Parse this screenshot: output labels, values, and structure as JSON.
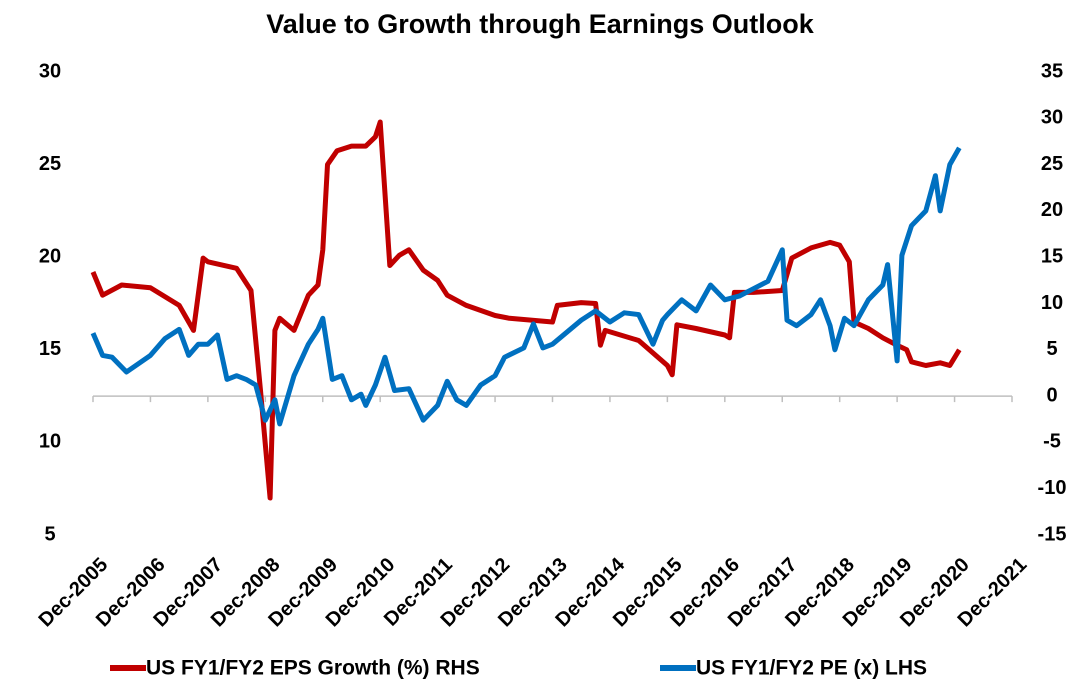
{
  "chart_data": {
    "type": "line",
    "title": "Value to Growth through Earnings Outlook",
    "xlim": [
      "Dec-2005",
      "Dec-2021"
    ],
    "xticks": [
      "Dec-2005",
      "Dec-2006",
      "Dec-2007",
      "Dec-2008",
      "Dec-2009",
      "Dec-2010",
      "Dec-2011",
      "Dec-2012",
      "Dec-2013",
      "Dec-2014",
      "Dec-2015",
      "Dec-2016",
      "Dec-2017",
      "Dec-2018",
      "Dec-2019",
      "Dec-2020",
      "Dec-2021"
    ],
    "ylim": [
      5,
      30
    ],
    "yticks": [
      5,
      10,
      15,
      20,
      25,
      30
    ],
    "y2lim": [
      -15,
      35
    ],
    "y2ticks": [
      -15,
      -10,
      -5,
      0,
      5,
      10,
      15,
      20,
      25,
      30,
      35
    ],
    "legend": "bottom",
    "series": [
      {
        "name": "US FY1/FY2 EPS Growth (%) RHS",
        "color": "#c00000",
        "axis": "y2",
        "x": [
          "Dec-2005",
          "Feb-2006",
          "Jun-2006",
          "Dec-2006",
          "Jun-2007",
          "Sep-2007",
          "Nov-2007",
          "Dec-2007",
          "Jun-2008",
          "Sep-2008",
          "Nov-2008",
          "Jan-2009",
          "Feb-2009",
          "Mar-2009",
          "Jun-2009",
          "Sep-2009",
          "Nov-2009",
          "Dec-2009",
          "Jan-2010",
          "Mar-2010",
          "Jun-2010",
          "Sep-2010",
          "Nov-2010",
          "Dec-2010",
          "Feb-2011",
          "Apr-2011",
          "Jun-2011",
          "Sep-2011",
          "Dec-2011",
          "Feb-2012",
          "Jun-2012",
          "Dec-2012",
          "Mar-2013",
          "Dec-2013",
          "Jan-2014",
          "Jun-2014",
          "Sep-2014",
          "Oct-2014",
          "Nov-2014",
          "Jun-2015",
          "Dec-2015",
          "Jan-2016",
          "Feb-2016",
          "Jun-2016",
          "Dec-2016",
          "Jan-2017",
          "Feb-2017",
          "Jun-2017",
          "Dec-2017",
          "Feb-2018",
          "Jun-2018",
          "Oct-2018",
          "Dec-2018",
          "Feb-2019",
          "Mar-2019",
          "Jun-2019",
          "Sep-2019",
          "Dec-2019",
          "Feb-2020",
          "Mar-2020",
          "Jun-2020",
          "Sep-2020",
          "Nov-2020",
          "Jan-2021"
        ],
        "values": [
          13.4,
          10.9,
          12,
          11.7,
          9.8,
          7.1,
          14.9,
          14.5,
          13.8,
          11.4,
          0.6,
          -11,
          7.1,
          8.4,
          7.1,
          10.9,
          12,
          15.8,
          25,
          26.5,
          27,
          27,
          28,
          29.6,
          14.1,
          15.2,
          15.8,
          13.6,
          12.5,
          10.9,
          9.8,
          8.7,
          8.4,
          8,
          9.8,
          10.1,
          10,
          5.5,
          7.1,
          6,
          3.3,
          2.3,
          7.7,
          7.3,
          6.6,
          6.3,
          11.2,
          11.2,
          11.4,
          14.9,
          16,
          16.6,
          16.3,
          14.5,
          8,
          7.3,
          6.3,
          5.5,
          5,
          3.7,
          3.3,
          3.6,
          3.3,
          5
        ]
      },
      {
        "name": "US FY1/FY2 PE (x) LHS",
        "color": "#0070c0",
        "axis": "y",
        "x": [
          "Dec-2005",
          "Feb-2006",
          "Apr-2006",
          "Jul-2006",
          "Dec-2006",
          "Mar-2007",
          "Jun-2007",
          "Aug-2007",
          "Oct-2007",
          "Dec-2007",
          "Feb-2008",
          "Apr-2008",
          "Jun-2008",
          "Aug-2008",
          "Oct-2008",
          "Dec-2008",
          "Feb-2009",
          "Mar-2009",
          "Jun-2009",
          "Sep-2009",
          "Nov-2009",
          "Dec-2009",
          "Feb-2010",
          "Apr-2010",
          "Jun-2010",
          "Aug-2010",
          "Sep-2010",
          "Nov-2010",
          "Jan-2011",
          "Mar-2011",
          "Jun-2011",
          "Sep-2011",
          "Dec-2011",
          "Feb-2012",
          "Apr-2012",
          "Jun-2012",
          "Sep-2012",
          "Dec-2012",
          "Feb-2013",
          "Jun-2013",
          "Aug-2013",
          "Oct-2013",
          "Dec-2013",
          "Jun-2014",
          "Sep-2014",
          "Dec-2014",
          "Mar-2015",
          "Jun-2015",
          "Sep-2015",
          "Nov-2015",
          "Dec-2015",
          "Mar-2016",
          "Jun-2016",
          "Sep-2016",
          "Dec-2016",
          "Mar-2017",
          "Jun-2017",
          "Sep-2017",
          "Dec-2017",
          "Jan-2018",
          "Mar-2018",
          "Jun-2018",
          "Aug-2018",
          "Oct-2018",
          "Nov-2018",
          "Jan-2019",
          "Mar-2019",
          "Jun-2019",
          "Sep-2019",
          "Oct-2019",
          "Dec-2019",
          "Jan-2020",
          "Mar-2020",
          "Jun-2020",
          "Aug-2020",
          "Sep-2020",
          "Nov-2020",
          "Jan-2021"
        ],
        "values": [
          15.9,
          14.7,
          14.6,
          13.8,
          14.7,
          15.6,
          16.1,
          14.7,
          15.3,
          15.3,
          15.8,
          13.4,
          13.6,
          13.4,
          13.1,
          11.2,
          12.3,
          11,
          13.6,
          15.3,
          16.1,
          16.7,
          13.4,
          13.6,
          12.3,
          12.6,
          12,
          13.1,
          14.6,
          12.8,
          12.9,
          11.2,
          12,
          13.3,
          12.3,
          12,
          13.1,
          13.6,
          14.6,
          15.1,
          16.4,
          15.1,
          15.3,
          16.6,
          17.1,
          16.5,
          17,
          16.9,
          15.3,
          16.6,
          16.9,
          17.7,
          17.1,
          18.5,
          17.7,
          17.9,
          18.3,
          18.7,
          20.4,
          16.6,
          16.3,
          16.9,
          17.7,
          16.3,
          15,
          16.7,
          16.3,
          17.7,
          18.5,
          19.6,
          14.4,
          20.1,
          21.7,
          22.5,
          24.4,
          22.5,
          25,
          25.9
        ]
      }
    ]
  }
}
